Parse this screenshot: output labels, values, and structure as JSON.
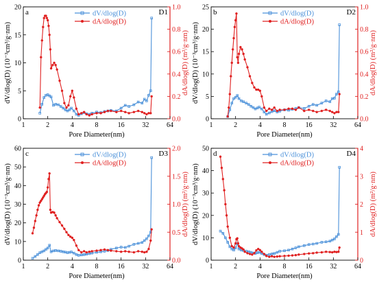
{
  "colors": {
    "series_v": "#4a90d9",
    "series_a": "#e02020",
    "axis": "#000000"
  },
  "chart_data": [
    {
      "type": "line",
      "panel_letter": "a",
      "sample": "D1",
      "xlabel": "Pore Diameter(nm)",
      "ylabel": "dV/dlog(D) (10⁻³cm³/g·nm)",
      "y2label": "dA/dlog(D) (m²/g·nm)",
      "x_scale": "log2",
      "xlim": [
        1,
        64
      ],
      "ylim": [
        0,
        20
      ],
      "y2lim": [
        0,
        1.0
      ],
      "xticks": [
        1,
        2,
        4,
        8,
        16,
        32,
        64
      ],
      "yticks": [
        0,
        5,
        10,
        15,
        20
      ],
      "y2ticks": [
        0.0,
        0.2,
        0.4,
        0.6,
        0.8,
        1.0
      ],
      "y2ticklabels": [
        "0.0",
        "0.2",
        "0.4",
        "0.6",
        "0.8",
        "1.0"
      ],
      "legend_position": "top-center",
      "series": [
        {
          "name": "dV/dlog(D)",
          "axis": "left",
          "marker": "square",
          "x": [
            1.6,
            1.7,
            1.8,
            1.9,
            2.0,
            2.1,
            2.2,
            2.35,
            2.5,
            2.7,
            2.9,
            3.1,
            3.3,
            3.5,
            3.7,
            3.9,
            4.2,
            4.5,
            4.8,
            5.2,
            5.6,
            6.0,
            6.5,
            7.0,
            8.0,
            9.0,
            10.0,
            11.0,
            12.0,
            14.0,
            16.0,
            18.0,
            20.0,
            23.0,
            26.0,
            29.0,
            31.0,
            33.0,
            35.0,
            37.0,
            38.0
          ],
          "values": [
            1.0,
            2.6,
            3.8,
            4.2,
            4.3,
            4.1,
            3.9,
            2.4,
            2.6,
            2.5,
            2.2,
            1.9,
            1.6,
            1.4,
            1.6,
            1.9,
            1.4,
            0.8,
            0.6,
            0.9,
            1.1,
            0.9,
            0.8,
            1.0,
            1.2,
            1.1,
            1.3,
            1.4,
            1.5,
            1.4,
            1.9,
            2.4,
            2.2,
            2.5,
            3.0,
            2.8,
            3.5,
            3.2,
            4.2,
            5.0,
            18.0
          ]
        },
        {
          "name": "dA/dlog(D)",
          "axis": "right",
          "marker": "circle",
          "x": [
            1.6,
            1.65,
            1.7,
            1.75,
            1.8,
            1.85,
            1.9,
            1.95,
            2.0,
            2.05,
            2.1,
            2.15,
            2.2,
            2.3,
            2.4,
            2.5,
            2.6,
            2.8,
            3.0,
            3.2,
            3.4,
            3.6,
            3.8,
            4.0,
            4.2,
            4.5,
            4.8,
            5.2,
            5.6,
            6.0,
            6.5,
            7.0,
            8.0,
            9.0,
            10.0,
            11.0,
            12.0,
            14.0,
            16.0,
            18.0,
            20.0,
            23.0,
            26.0,
            29.0,
            31.0,
            33.0,
            35.0,
            37.0,
            38.0
          ],
          "values": [
            0.1,
            0.55,
            0.7,
            0.82,
            0.9,
            0.92,
            0.92,
            0.9,
            0.88,
            0.83,
            0.75,
            0.62,
            0.45,
            0.48,
            0.5,
            0.48,
            0.44,
            0.34,
            0.25,
            0.14,
            0.1,
            0.12,
            0.2,
            0.25,
            0.19,
            0.09,
            0.04,
            0.05,
            0.06,
            0.04,
            0.03,
            0.04,
            0.05,
            0.05,
            0.06,
            0.07,
            0.07,
            0.06,
            0.07,
            0.06,
            0.05,
            0.06,
            0.07,
            0.06,
            0.05,
            0.04,
            0.05,
            0.05,
            0.2
          ]
        }
      ]
    },
    {
      "type": "line",
      "panel_letter": "b",
      "sample": "D2",
      "xlabel": "Pore Diameter(nm)",
      "ylabel": "dV/dlog(D) (10⁻³cm³/g·nm)",
      "y2label": "dA/dlog(D) (m²/g·nm)",
      "x_scale": "log2",
      "xlim": [
        1,
        64
      ],
      "ylim": [
        0,
        25
      ],
      "y2lim": [
        0,
        1.0
      ],
      "xticks": [
        1,
        2,
        4,
        8,
        16,
        32,
        64
      ],
      "yticks": [
        0,
        5,
        10,
        15,
        20,
        25
      ],
      "y2ticks": [
        0.0,
        0.2,
        0.4,
        0.6,
        0.8,
        1.0
      ],
      "y2ticklabels": [
        "0.0",
        "0.2",
        "0.4",
        "0.6",
        "0.8",
        "1.0"
      ],
      "legend_position": "top-center",
      "series": [
        {
          "name": "dV/dlog(D)",
          "axis": "left",
          "marker": "square",
          "x": [
            1.6,
            1.7,
            1.8,
            1.9,
            2.0,
            2.1,
            2.2,
            2.35,
            2.5,
            2.7,
            2.9,
            3.1,
            3.3,
            3.5,
            3.7,
            3.9,
            4.2,
            4.5,
            4.8,
            5.2,
            5.6,
            6.0,
            6.5,
            7.0,
            8.0,
            9.0,
            10.0,
            11.0,
            12.0,
            14.0,
            16.0,
            18.0,
            20.0,
            23.0,
            26.0,
            29.0,
            31.0,
            33.0,
            35.0,
            37.0,
            38.0
          ],
          "values": [
            0.5,
            2.0,
            3.5,
            4.5,
            4.8,
            5.2,
            4.5,
            4.0,
            3.8,
            3.5,
            3.2,
            2.8,
            2.5,
            2.2,
            2.4,
            2.6,
            2.2,
            1.5,
            1.0,
            1.3,
            1.6,
            1.8,
            1.5,
            1.7,
            2.0,
            1.9,
            2.1,
            2.3,
            2.5,
            2.3,
            2.8,
            3.2,
            3.0,
            3.5,
            4.0,
            3.8,
            4.5,
            4.6,
            5.5,
            6.0,
            21.0
          ]
        },
        {
          "name": "dA/dlog(D)",
          "axis": "right",
          "marker": "circle",
          "x": [
            1.6,
            1.65,
            1.7,
            1.75,
            1.8,
            1.85,
            1.9,
            1.95,
            2.0,
            2.05,
            2.1,
            2.15,
            2.2,
            2.3,
            2.4,
            2.5,
            2.6,
            2.8,
            3.0,
            3.2,
            3.4,
            3.6,
            3.8,
            4.0,
            4.2,
            4.5,
            4.8,
            5.2,
            5.6,
            6.0,
            6.5,
            7.0,
            8.0,
            9.0,
            10.0,
            11.0,
            12.0,
            14.0,
            16.0,
            18.0,
            20.0,
            23.0,
            26.0,
            29.0,
            31.0,
            33.0,
            35.0,
            37.0,
            38.0
          ],
          "values": [
            0.02,
            0.1,
            0.22,
            0.38,
            0.5,
            0.62,
            0.72,
            0.82,
            0.88,
            0.94,
            0.55,
            0.5,
            0.58,
            0.64,
            0.62,
            0.58,
            0.53,
            0.46,
            0.38,
            0.32,
            0.28,
            0.26,
            0.26,
            0.25,
            0.2,
            0.1,
            0.07,
            0.09,
            0.08,
            0.1,
            0.07,
            0.08,
            0.08,
            0.09,
            0.09,
            0.08,
            0.1,
            0.07,
            0.08,
            0.07,
            0.06,
            0.07,
            0.08,
            0.07,
            0.06,
            0.05,
            0.06,
            0.06,
            0.22
          ]
        }
      ]
    },
    {
      "type": "line",
      "panel_letter": "c",
      "sample": "D3",
      "xlabel": "Pore Diameter(nm)",
      "ylabel": "dV/dlog(D) (10⁻³cm³/g·nm)",
      "y2label": "dA/dlog(D) (m²/g·nm)",
      "x_scale": "log2",
      "xlim": [
        1,
        64
      ],
      "ylim": [
        0,
        60
      ],
      "y2lim": [
        0,
        2.0
      ],
      "xticks": [
        1,
        2,
        4,
        8,
        16,
        32,
        64
      ],
      "yticks": [
        0,
        10,
        20,
        30,
        40,
        50,
        60
      ],
      "y2ticks": [
        0.0,
        0.5,
        1.0,
        1.5,
        2.0
      ],
      "y2ticklabels": [
        "0.0",
        "0.5",
        "1.0",
        "1.5",
        "2.0"
      ],
      "legend_position": "top-center",
      "series": [
        {
          "name": "dV/dlog(D)",
          "axis": "left",
          "marker": "square",
          "x": [
            1.3,
            1.4,
            1.5,
            1.6,
            1.7,
            1.8,
            1.9,
            2.0,
            2.1,
            2.2,
            2.35,
            2.5,
            2.7,
            2.9,
            3.1,
            3.3,
            3.5,
            3.7,
            3.9,
            4.2,
            4.5,
            4.8,
            5.2,
            5.6,
            6.0,
            6.5,
            7.0,
            8.0,
            9.0,
            10.0,
            11.0,
            12.0,
            14.0,
            16.0,
            18.0,
            20.0,
            23.0,
            26.0,
            29.0,
            31.0,
            33.0,
            35.0,
            37.0,
            38.0
          ],
          "values": [
            1.0,
            2.0,
            3.0,
            4.0,
            4.5,
            5.0,
            5.8,
            6.5,
            8.0,
            4.5,
            5.0,
            5.2,
            5.0,
            4.8,
            4.5,
            4.3,
            4.0,
            4.2,
            4.4,
            3.8,
            3.0,
            2.6,
            2.8,
            3.0,
            3.2,
            3.5,
            3.8,
            4.2,
            4.5,
            4.8,
            5.2,
            5.8,
            6.5,
            7.0,
            6.8,
            7.5,
            8.5,
            9.0,
            9.5,
            10.5,
            11.5,
            13.0,
            15.0,
            55.0
          ]
        },
        {
          "name": "dA/dlog(D)",
          "axis": "right",
          "marker": "circle",
          "x": [
            1.3,
            1.35,
            1.4,
            1.45,
            1.5,
            1.55,
            1.6,
            1.65,
            1.7,
            1.75,
            1.8,
            1.85,
            1.9,
            1.95,
            2.0,
            2.05,
            2.1,
            2.15,
            2.2,
            2.3,
            2.4,
            2.5,
            2.6,
            2.8,
            3.0,
            3.2,
            3.4,
            3.6,
            3.8,
            4.0,
            4.2,
            4.5,
            4.8,
            5.2,
            5.6,
            6.0,
            6.5,
            7.0,
            8.0,
            9.0,
            10.0,
            11.0,
            12.0,
            14.0,
            16.0,
            18.0,
            20.0,
            23.0,
            26.0,
            29.0,
            31.0,
            33.0,
            35.0,
            37.0,
            38.0
          ],
          "values": [
            0.48,
            0.58,
            0.7,
            0.8,
            0.9,
            0.98,
            1.03,
            1.06,
            1.09,
            1.12,
            1.15,
            1.18,
            1.2,
            1.22,
            1.3,
            1.45,
            1.55,
            0.9,
            0.85,
            0.86,
            0.85,
            0.8,
            0.75,
            0.68,
            0.62,
            0.56,
            0.5,
            0.45,
            0.42,
            0.4,
            0.36,
            0.26,
            0.18,
            0.14,
            0.16,
            0.14,
            0.15,
            0.16,
            0.17,
            0.18,
            0.19,
            0.18,
            0.17,
            0.16,
            0.15,
            0.16,
            0.15,
            0.14,
            0.16,
            0.15,
            0.14,
            0.15,
            0.2,
            0.35,
            0.55
          ]
        }
      ]
    },
    {
      "type": "line",
      "panel_letter": "d",
      "sample": "D4",
      "xlabel": "Pore Diameter(nm)",
      "ylabel": "dV/dlog(D) (10⁻³cm³/g·nm)",
      "y2label": "dA/dlog(D) (m²/g·nm)",
      "x_scale": "log2",
      "xlim": [
        1,
        64
      ],
      "ylim": [
        0,
        50
      ],
      "y2lim": [
        0,
        4
      ],
      "xticks": [
        1,
        2,
        4,
        8,
        16,
        32,
        64
      ],
      "yticks": [
        0,
        10,
        20,
        30,
        40,
        50
      ],
      "y2ticks": [
        0,
        1,
        2,
        3,
        4
      ],
      "y2ticklabels": [
        "0",
        "1",
        "2",
        "3",
        "4"
      ],
      "legend_position": "top-center",
      "series": [
        {
          "name": "dV/dlog(D)",
          "axis": "left",
          "marker": "square",
          "x": [
            1.3,
            1.4,
            1.5,
            1.6,
            1.7,
            1.8,
            1.9,
            2.0,
            2.1,
            2.2,
            2.35,
            2.5,
            2.7,
            2.9,
            3.1,
            3.3,
            3.5,
            3.7,
            3.9,
            4.2,
            4.5,
            4.8,
            5.2,
            5.6,
            6.0,
            6.5,
            7.0,
            8.0,
            9.0,
            10.0,
            11.0,
            12.0,
            14.0,
            16.0,
            18.0,
            20.0,
            23.0,
            26.0,
            29.0,
            31.0,
            33.0,
            35.0,
            37.0,
            38.0
          ],
          "values": [
            13.0,
            12.0,
            10.0,
            8.0,
            6.0,
            5.0,
            4.5,
            5.5,
            7.5,
            5.0,
            4.5,
            4.3,
            4.0,
            3.8,
            3.5,
            3.2,
            3.0,
            3.3,
            3.5,
            3.0,
            2.5,
            2.2,
            2.5,
            2.8,
            3.0,
            3.5,
            4.0,
            4.2,
            4.5,
            5.0,
            5.5,
            6.0,
            6.5,
            7.0,
            7.2,
            7.5,
            8.0,
            8.2,
            8.5,
            9.0,
            9.5,
            10.5,
            11.5,
            41.5
          ]
        },
        {
          "name": "dA/dlog(D)",
          "axis": "right",
          "marker": "circle",
          "x": [
            1.3,
            1.35,
            1.4,
            1.45,
            1.5,
            1.55,
            1.6,
            1.7,
            1.8,
            1.9,
            2.0,
            2.05,
            2.1,
            2.15,
            2.2,
            2.3,
            2.4,
            2.5,
            2.6,
            2.8,
            3.0,
            3.2,
            3.4,
            3.6,
            3.8,
            4.0,
            4.2,
            4.5,
            4.8,
            5.2,
            5.6,
            6.0,
            6.5,
            7.0,
            8.0,
            9.0,
            10.0,
            11.0,
            12.0,
            14.0,
            16.0,
            18.0,
            20.0,
            23.0,
            26.0,
            29.0,
            31.0,
            33.0,
            35.0,
            37.0,
            38.0
          ],
          "values": [
            3.7,
            3.3,
            2.9,
            2.5,
            2.0,
            1.6,
            1.2,
            0.8,
            0.5,
            0.45,
            0.6,
            0.75,
            0.78,
            0.6,
            0.5,
            0.45,
            0.42,
            0.38,
            0.3,
            0.25,
            0.22,
            0.2,
            0.25,
            0.35,
            0.4,
            0.36,
            0.3,
            0.22,
            0.15,
            0.12,
            0.14,
            0.12,
            0.13,
            0.14,
            0.15,
            0.16,
            0.17,
            0.18,
            0.2,
            0.22,
            0.24,
            0.25,
            0.27,
            0.28,
            0.3,
            0.29,
            0.28,
            0.3,
            0.29,
            0.3,
            0.45
          ]
        }
      ]
    }
  ]
}
